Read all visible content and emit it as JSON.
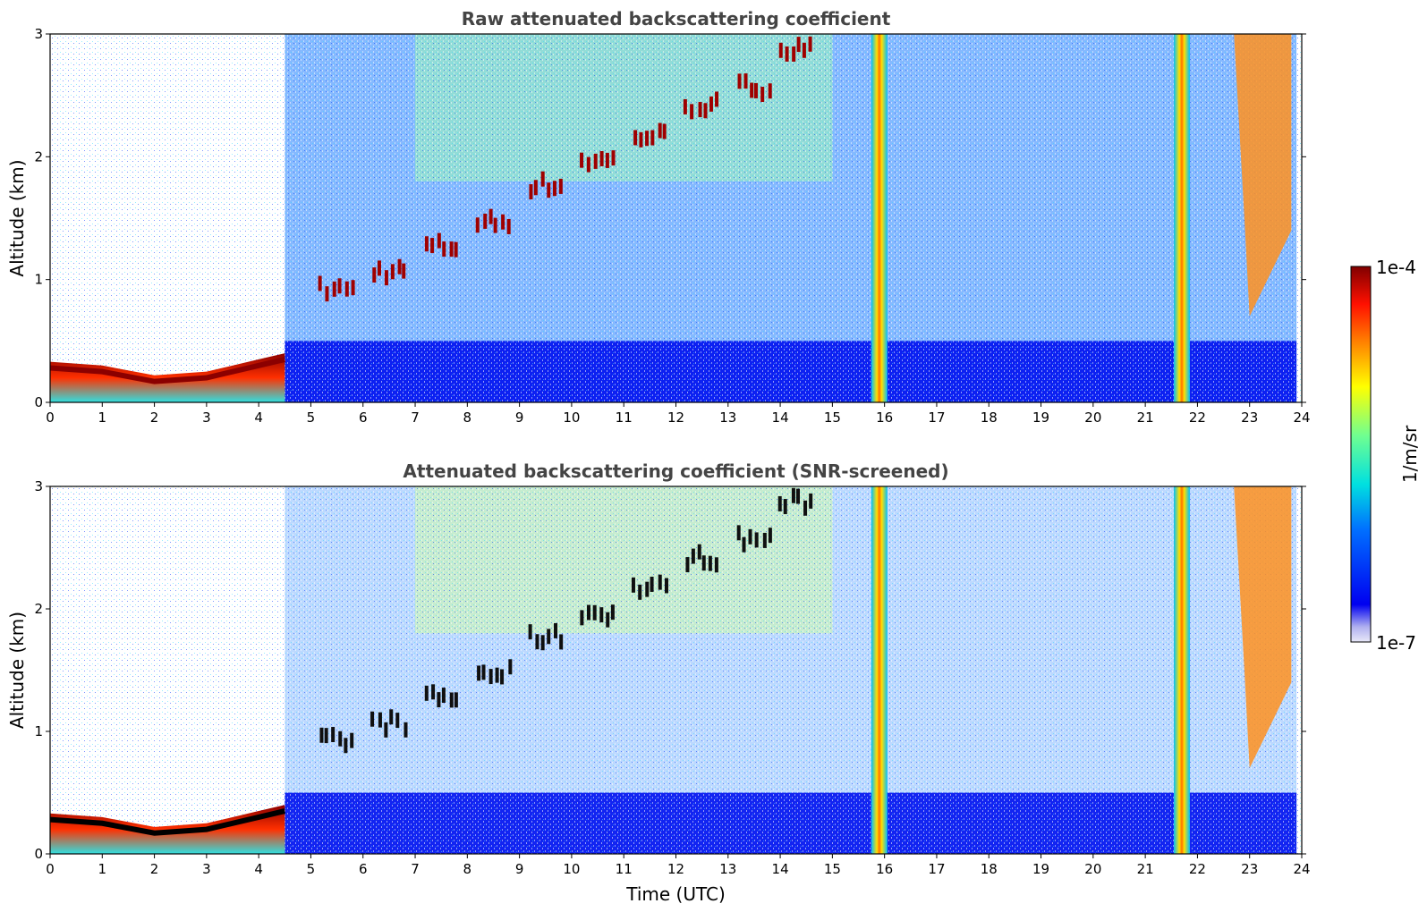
{
  "chart_data": [
    {
      "type": "heatmap",
      "title": "Raw attenuated backscattering coefficient",
      "xlabel": "",
      "ylabel": "Altitude (km)",
      "xlim": [
        0,
        24
      ],
      "ylim": [
        0,
        3
      ],
      "xticks": [
        "0",
        "1",
        "2",
        "3",
        "4",
        "5",
        "6",
        "7",
        "8",
        "9",
        "10",
        "11",
        "12",
        "13",
        "14",
        "15",
        "16",
        "17",
        "18",
        "19",
        "20",
        "21",
        "22",
        "23",
        "24"
      ],
      "yticks": [
        "0",
        "1",
        "2",
        "3"
      ],
      "colorscale": "jet",
      "color_range": [
        1e-07,
        0.0001
      ],
      "features": {
        "boundary_layer_top_km": [
          [
            0,
            0.33
          ],
          [
            1,
            0.3
          ],
          [
            2,
            0.22
          ],
          [
            3,
            0.25
          ],
          [
            4,
            0.35
          ],
          [
            4.5,
            0.4
          ]
        ],
        "ascending_aerosol_layer_km": [
          [
            5.5,
            0.9
          ],
          [
            6.5,
            1.05
          ],
          [
            7.5,
            1.25
          ],
          [
            8.5,
            1.45
          ],
          [
            9.5,
            1.75
          ],
          [
            10.5,
            1.95
          ],
          [
            11.5,
            2.15
          ],
          [
            12.5,
            2.4
          ],
          [
            13.5,
            2.55
          ],
          [
            14.3,
            2.85
          ]
        ],
        "precip_columns_utc": [
          15.9,
          21.7
        ],
        "high_cloud_utc": [
          22.7,
          23.8
        ]
      }
    },
    {
      "type": "heatmap",
      "title": "Attenuated backscattering coefficient (SNR-screened)",
      "xlabel": "Time (UTC)",
      "ylabel": "Altitude (km)",
      "xlim": [
        0,
        24
      ],
      "ylim": [
        0,
        3
      ],
      "xticks": [
        "0",
        "1",
        "2",
        "3",
        "4",
        "5",
        "6",
        "7",
        "8",
        "9",
        "10",
        "11",
        "12",
        "13",
        "14",
        "15",
        "16",
        "17",
        "18",
        "19",
        "20",
        "21",
        "22",
        "23",
        "24"
      ],
      "yticks": [
        "0",
        "1",
        "2",
        "3"
      ],
      "colorscale": "jet",
      "color_range": [
        1e-07,
        0.0001
      ]
    }
  ],
  "colorbar": {
    "max_label": "1e-4",
    "min_label": "1e-7",
    "unit_label": "1/m/sr"
  }
}
